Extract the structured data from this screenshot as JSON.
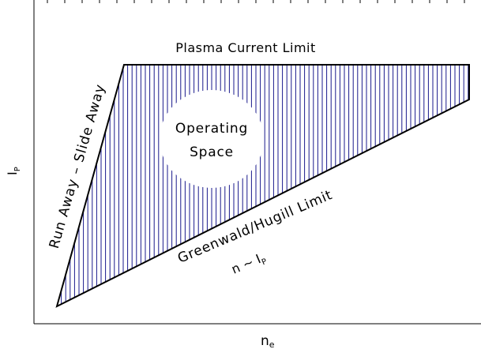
{
  "diagram": {
    "x_axis_label": "n",
    "x_axis_subscript": "e",
    "y_axis_label": "I",
    "y_axis_subscript": "P",
    "top_edge_label": "Plasma Current Limit",
    "left_edge_label": "Run Away – Slide Away",
    "bottom_edge_label": "Greenwald/Hugill Limit",
    "relation_prefix": "n ~ I",
    "relation_subscript": "P",
    "region_label_line1": "Operating",
    "region_label_line2": "Space"
  },
  "colors": {
    "hatch": "#1a1a8c",
    "outline": "#000000",
    "axes": "#000000"
  }
}
